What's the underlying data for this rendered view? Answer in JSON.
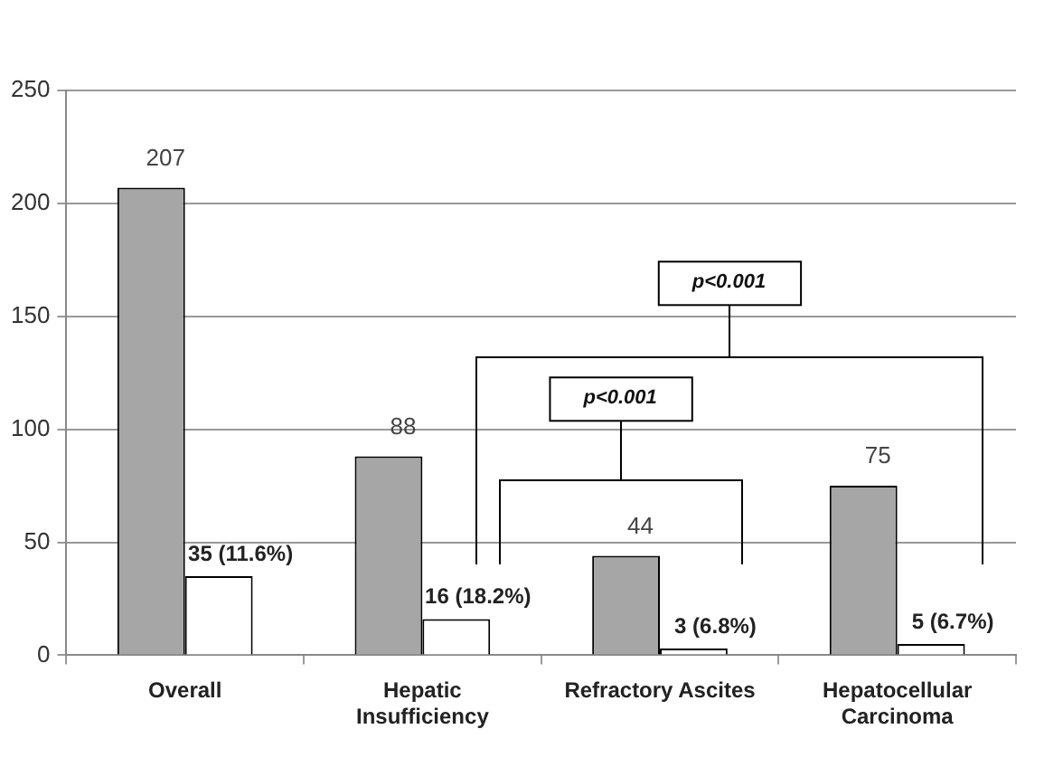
{
  "chart_data": {
    "type": "bar",
    "categories": [
      "Overall",
      "Hepatic Insufficiency",
      "Refractory Ascites",
      "Hepatocellular Carcinoma"
    ],
    "series": [
      {
        "color": "#a6a6a6",
        "values": [
          207,
          88,
          44,
          75
        ],
        "value_labels": [
          "207",
          "88",
          "44",
          "75"
        ]
      },
      {
        "color": "#ffffff",
        "values": [
          35,
          16,
          3,
          5
        ],
        "value_labels": [
          "35 (11.6%)",
          "16 (18.2%)",
          "3 (6.8%)",
          "5 (6.7%)"
        ]
      }
    ],
    "ylim": [
      0,
      250
    ],
    "yticks": [
      0,
      50,
      100,
      150,
      200,
      250
    ],
    "grid": "y",
    "annotations": [
      "p<0.001",
      "p<0.001"
    ]
  }
}
